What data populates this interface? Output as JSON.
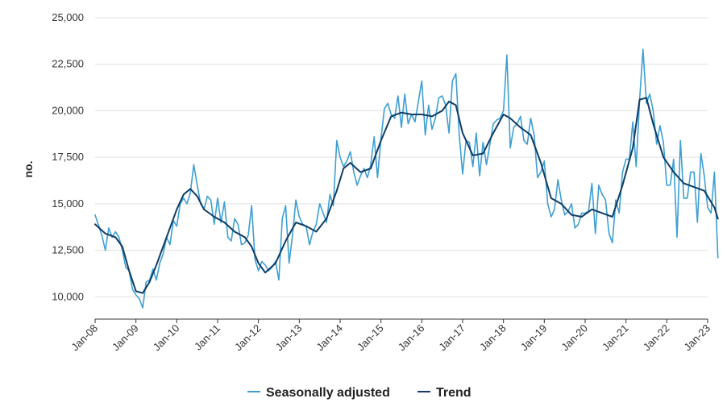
{
  "chart_data": {
    "type": "line",
    "title": "",
    "xlabel": "",
    "ylabel": "no.",
    "ylim": [
      8800,
      25000
    ],
    "yticks": [
      10000,
      12500,
      15000,
      17500,
      20000,
      22500,
      25000
    ],
    "ytick_labels": [
      "10,000",
      "12,500",
      "15,000",
      "17,500",
      "20,000",
      "22,500",
      "25,000"
    ],
    "xticks": [
      "2008-01",
      "2009-01",
      "2010-01",
      "2011-01",
      "2012-01",
      "2013-01",
      "2014-01",
      "2015-01",
      "2016-01",
      "2017-01",
      "2018-01",
      "2019-01",
      "2020-01",
      "2021-01",
      "2022-01",
      "2023-01"
    ],
    "xtick_labels": [
      "Jan-08",
      "Jan-09",
      "Jan-10",
      "Jan-11",
      "Jan-12",
      "Jan-13",
      "Jan-14",
      "Jan-15",
      "Jan-16",
      "Jan-17",
      "Jan-18",
      "Jan-19",
      "Jan-20",
      "Jan-21",
      "Jan-22",
      "Jan-23"
    ],
    "x_start": "2008-01",
    "x_end": "2023-01",
    "grid": {
      "horizontal": true,
      "vertical": false
    },
    "legend_position": "bottom",
    "series": [
      {
        "name": "Seasonally adjusted",
        "color": "#3d9fd3",
        "points": [
          [
            "2008-01",
            14400
          ],
          [
            "2008-03",
            13300
          ],
          [
            "2008-04",
            12500
          ],
          [
            "2008-05",
            13700
          ],
          [
            "2008-06",
            13200
          ],
          [
            "2008-07",
            13500
          ],
          [
            "2008-08",
            13200
          ],
          [
            "2008-09",
            12500
          ],
          [
            "2008-10",
            11600
          ],
          [
            "2008-11",
            11400
          ],
          [
            "2008-12",
            10400
          ],
          [
            "2009-01",
            10100
          ],
          [
            "2009-02",
            9900
          ],
          [
            "2009-03",
            9400
          ],
          [
            "2009-04",
            10800
          ],
          [
            "2009-05",
            10900
          ],
          [
            "2009-06",
            11500
          ],
          [
            "2009-07",
            10900
          ],
          [
            "2009-08",
            11800
          ],
          [
            "2009-09",
            12300
          ],
          [
            "2009-10",
            13200
          ],
          [
            "2009-11",
            12800
          ],
          [
            "2009-12",
            14100
          ],
          [
            "2010-01",
            13800
          ],
          [
            "2010-02",
            15000
          ],
          [
            "2010-03",
            15300
          ],
          [
            "2010-04",
            15000
          ],
          [
            "2010-05",
            15600
          ],
          [
            "2010-06",
            17100
          ],
          [
            "2010-07",
            16000
          ],
          [
            "2010-08",
            15000
          ],
          [
            "2010-09",
            14700
          ],
          [
            "2010-10",
            15400
          ],
          [
            "2010-11",
            15200
          ],
          [
            "2010-12",
            13900
          ],
          [
            "2011-01",
            15300
          ],
          [
            "2011-02",
            14000
          ],
          [
            "2011-03",
            15100
          ],
          [
            "2011-04",
            13200
          ],
          [
            "2011-05",
            13000
          ],
          [
            "2011-06",
            14200
          ],
          [
            "2011-07",
            13900
          ],
          [
            "2011-08",
            12800
          ],
          [
            "2011-09",
            12900
          ],
          [
            "2011-10",
            13300
          ],
          [
            "2011-11",
            14900
          ],
          [
            "2011-12",
            12000
          ],
          [
            "2012-01",
            11400
          ],
          [
            "2012-02",
            11900
          ],
          [
            "2012-03",
            11700
          ],
          [
            "2012-04",
            11400
          ],
          [
            "2012-05",
            11600
          ],
          [
            "2012-06",
            11900
          ],
          [
            "2012-07",
            10900
          ],
          [
            "2012-08",
            14200
          ],
          [
            "2012-09",
            14900
          ],
          [
            "2012-10",
            11800
          ],
          [
            "2012-11",
            13300
          ],
          [
            "2012-12",
            15200
          ],
          [
            "2013-01",
            14300
          ],
          [
            "2013-02",
            13900
          ],
          [
            "2013-03",
            13800
          ],
          [
            "2013-04",
            12800
          ],
          [
            "2013-05",
            13500
          ],
          [
            "2013-06",
            13900
          ],
          [
            "2013-07",
            15000
          ],
          [
            "2013-08",
            14500
          ],
          [
            "2013-09",
            14000
          ],
          [
            "2013-10",
            15500
          ],
          [
            "2013-11",
            14900
          ],
          [
            "2013-12",
            18400
          ],
          [
            "2014-01",
            17500
          ],
          [
            "2014-02",
            17000
          ],
          [
            "2014-03",
            17300
          ],
          [
            "2014-04",
            17800
          ],
          [
            "2014-05",
            16700
          ],
          [
            "2014-06",
            16000
          ],
          [
            "2014-07",
            16500
          ],
          [
            "2014-08",
            16900
          ],
          [
            "2014-09",
            16400
          ],
          [
            "2014-10",
            17100
          ],
          [
            "2014-11",
            18600
          ],
          [
            "2014-12",
            16400
          ],
          [
            "2015-01",
            18500
          ],
          [
            "2015-02",
            20100
          ],
          [
            "2015-03",
            20400
          ],
          [
            "2015-04",
            19800
          ],
          [
            "2015-05",
            19600
          ],
          [
            "2015-06",
            20800
          ],
          [
            "2015-07",
            19100
          ],
          [
            "2015-08",
            20900
          ],
          [
            "2015-09",
            19300
          ],
          [
            "2015-10",
            19800
          ],
          [
            "2015-11",
            19400
          ],
          [
            "2015-12",
            20500
          ],
          [
            "2016-01",
            21600
          ],
          [
            "2016-02",
            18700
          ],
          [
            "2016-03",
            20300
          ],
          [
            "2016-04",
            19000
          ],
          [
            "2016-05",
            19600
          ],
          [
            "2016-06",
            20700
          ],
          [
            "2016-07",
            20800
          ],
          [
            "2016-08",
            20300
          ],
          [
            "2016-09",
            18800
          ],
          [
            "2016-10",
            21600
          ],
          [
            "2016-11",
            22000
          ],
          [
            "2016-12",
            18700
          ],
          [
            "2017-01",
            16600
          ],
          [
            "2017-02",
            18400
          ],
          [
            "2017-03",
            18300
          ],
          [
            "2017-04",
            17000
          ],
          [
            "2017-05",
            18800
          ],
          [
            "2017-06",
            16500
          ],
          [
            "2017-07",
            18300
          ],
          [
            "2017-08",
            17100
          ],
          [
            "2017-09",
            18200
          ],
          [
            "2017-10",
            19300
          ],
          [
            "2017-11",
            19500
          ],
          [
            "2017-12",
            19600
          ],
          [
            "2018-01",
            20000
          ],
          [
            "2018-02",
            23000
          ],
          [
            "2018-03",
            18000
          ],
          [
            "2018-04",
            19100
          ],
          [
            "2018-05",
            19300
          ],
          [
            "2018-06",
            19700
          ],
          [
            "2018-07",
            18400
          ],
          [
            "2018-08",
            18200
          ],
          [
            "2018-09",
            19600
          ],
          [
            "2018-10",
            18700
          ],
          [
            "2018-11",
            16400
          ],
          [
            "2018-12",
            16700
          ],
          [
            "2019-01",
            17300
          ],
          [
            "2019-02",
            15000
          ],
          [
            "2019-03",
            14300
          ],
          [
            "2019-04",
            14700
          ],
          [
            "2019-05",
            16300
          ],
          [
            "2019-06",
            15200
          ],
          [
            "2019-07",
            14400
          ],
          [
            "2019-08",
            14600
          ],
          [
            "2019-09",
            15000
          ],
          [
            "2019-10",
            13700
          ],
          [
            "2019-11",
            13900
          ],
          [
            "2019-12",
            14500
          ],
          [
            "2020-01",
            14500
          ],
          [
            "2020-02",
            14600
          ],
          [
            "2020-03",
            16100
          ],
          [
            "2020-04",
            13400
          ],
          [
            "2020-05",
            16000
          ],
          [
            "2020-06",
            15500
          ],
          [
            "2020-07",
            15200
          ],
          [
            "2020-08",
            13400
          ],
          [
            "2020-09",
            12900
          ],
          [
            "2020-10",
            15200
          ],
          [
            "2020-11",
            14500
          ],
          [
            "2020-12",
            16700
          ],
          [
            "2021-01",
            17400
          ],
          [
            "2021-02",
            17400
          ],
          [
            "2021-03",
            19400
          ],
          [
            "2021-04",
            17000
          ],
          [
            "2021-05",
            20600
          ],
          [
            "2021-06",
            23300
          ],
          [
            "2021-07",
            20400
          ],
          [
            "2021-08",
            20900
          ],
          [
            "2021-09",
            20000
          ],
          [
            "2021-10",
            18200
          ],
          [
            "2021-11",
            19200
          ],
          [
            "2021-12",
            18300
          ],
          [
            "2022-01",
            16000
          ],
          [
            "2022-02",
            16000
          ],
          [
            "2022-03",
            17400
          ],
          [
            "2022-04",
            13200
          ],
          [
            "2022-05",
            18400
          ],
          [
            "2022-06",
            15300
          ],
          [
            "2022-07",
            15300
          ],
          [
            "2022-08",
            16700
          ],
          [
            "2022-09",
            16700
          ],
          [
            "2022-10",
            14000
          ],
          [
            "2022-11",
            17700
          ],
          [
            "2022-12",
            16500
          ],
          [
            "2023-01",
            14800
          ],
          [
            "2023-02",
            14500
          ],
          [
            "2023-03",
            16700
          ],
          [
            "2023-04",
            12100
          ]
        ]
      },
      {
        "name": "Trend",
        "color": "#0f3d66",
        "points": [
          [
            "2008-01",
            13900
          ],
          [
            "2008-04",
            13400
          ],
          [
            "2008-07",
            13200
          ],
          [
            "2008-09",
            12700
          ],
          [
            "2008-11",
            11400
          ],
          [
            "2009-01",
            10300
          ],
          [
            "2009-03",
            10200
          ],
          [
            "2009-05",
            10800
          ],
          [
            "2009-07",
            11700
          ],
          [
            "2009-09",
            12700
          ],
          [
            "2009-11",
            13700
          ],
          [
            "2010-01",
            14700
          ],
          [
            "2010-03",
            15500
          ],
          [
            "2010-05",
            15800
          ],
          [
            "2010-07",
            15400
          ],
          [
            "2010-09",
            14700
          ],
          [
            "2010-12",
            14300
          ],
          [
            "2011-03",
            14000
          ],
          [
            "2011-06",
            13500
          ],
          [
            "2011-09",
            13200
          ],
          [
            "2011-11",
            12700
          ],
          [
            "2012-01",
            11800
          ],
          [
            "2012-03",
            11300
          ],
          [
            "2012-06",
            11800
          ],
          [
            "2012-09",
            13000
          ],
          [
            "2012-12",
            14000
          ],
          [
            "2013-03",
            13800
          ],
          [
            "2013-06",
            13500
          ],
          [
            "2013-09",
            14200
          ],
          [
            "2013-12",
            15700
          ],
          [
            "2014-02",
            16900
          ],
          [
            "2014-04",
            17200
          ],
          [
            "2014-07",
            16700
          ],
          [
            "2014-10",
            16900
          ],
          [
            "2015-01",
            18400
          ],
          [
            "2015-04",
            19700
          ],
          [
            "2015-07",
            19900
          ],
          [
            "2015-10",
            19800
          ],
          [
            "2016-01",
            19800
          ],
          [
            "2016-04",
            19700
          ],
          [
            "2016-07",
            20000
          ],
          [
            "2016-09",
            20500
          ],
          [
            "2016-11",
            20300
          ],
          [
            "2017-01",
            18800
          ],
          [
            "2017-04",
            17600
          ],
          [
            "2017-07",
            17700
          ],
          [
            "2017-10",
            18800
          ],
          [
            "2018-01",
            19800
          ],
          [
            "2018-03",
            19600
          ],
          [
            "2018-06",
            19100
          ],
          [
            "2018-09",
            18700
          ],
          [
            "2018-12",
            17200
          ],
          [
            "2019-03",
            15300
          ],
          [
            "2019-06",
            15000
          ],
          [
            "2019-09",
            14400
          ],
          [
            "2019-12",
            14300
          ],
          [
            "2020-03",
            14700
          ],
          [
            "2020-06",
            14500
          ],
          [
            "2020-09",
            14300
          ],
          [
            "2020-12",
            16000
          ],
          [
            "2021-03",
            18000
          ],
          [
            "2021-05",
            20600
          ],
          [
            "2021-07",
            20700
          ],
          [
            "2021-09",
            19300
          ],
          [
            "2021-12",
            17500
          ],
          [
            "2022-03",
            16700
          ],
          [
            "2022-06",
            16100
          ],
          [
            "2022-09",
            15900
          ],
          [
            "2022-12",
            15700
          ],
          [
            "2023-03",
            14800
          ],
          [
            "2023-04",
            14200
          ]
        ]
      }
    ]
  },
  "legend": {
    "items": [
      {
        "label": "Seasonally adjusted",
        "color": "#3d9fd3"
      },
      {
        "label": "Trend",
        "color": "#0f3d66"
      }
    ]
  }
}
